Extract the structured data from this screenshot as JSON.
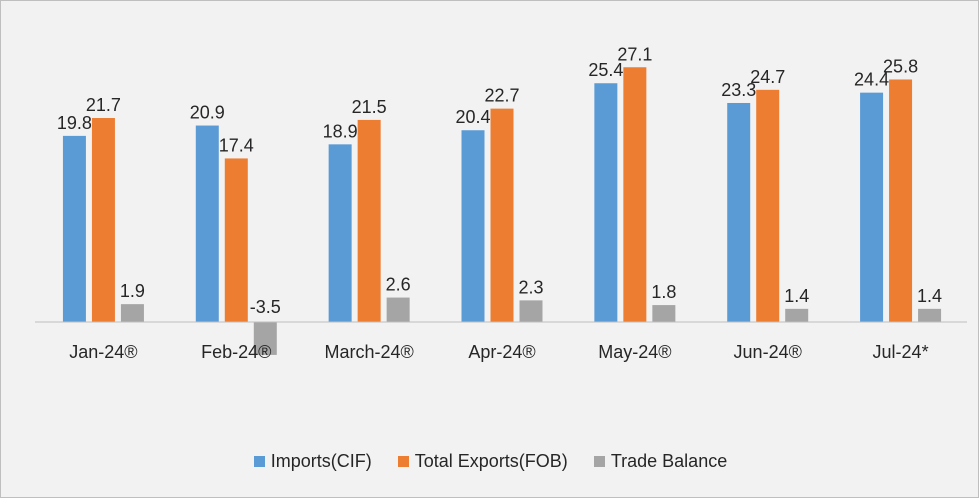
{
  "chart_data": {
    "type": "bar",
    "categories": [
      "Jan-24®",
      "Feb-24®",
      "March-24®",
      "Apr-24®",
      "May-24®",
      "Jun-24®",
      "Jul-24*"
    ],
    "series": [
      {
        "name": "Imports(CIF)",
        "color": "#5b9bd5",
        "values": [
          19.8,
          20.9,
          18.9,
          20.4,
          25.4,
          23.3,
          24.4
        ],
        "labels": [
          "19.8",
          "20.9",
          "18.9",
          "20.4",
          "25.4",
          "23.3",
          "24.4"
        ]
      },
      {
        "name": "Total Exports(FOB)",
        "color": "#ed7d31",
        "values": [
          21.7,
          17.4,
          21.5,
          22.7,
          27.1,
          24.7,
          25.8
        ],
        "labels": [
          "21.7",
          "17.4",
          "21.5",
          "22.7",
          "27.1",
          "24.7",
          "25.8"
        ]
      },
      {
        "name": "Trade Balance",
        "color": "#a5a5a5",
        "values": [
          1.9,
          -3.5,
          2.6,
          2.3,
          1.8,
          1.4,
          1.4
        ],
        "labels": [
          "1.9",
          "-3.5",
          "2.6",
          "2.3",
          "1.8",
          "1.4",
          "1.4"
        ]
      }
    ],
    "title": "",
    "xlabel": "",
    "ylabel": "",
    "ylim": [
      -4,
      30
    ],
    "grid": false,
    "legend_position": "bottom",
    "axis_color": "#bfbfbf",
    "background": "#f2f2f2"
  }
}
